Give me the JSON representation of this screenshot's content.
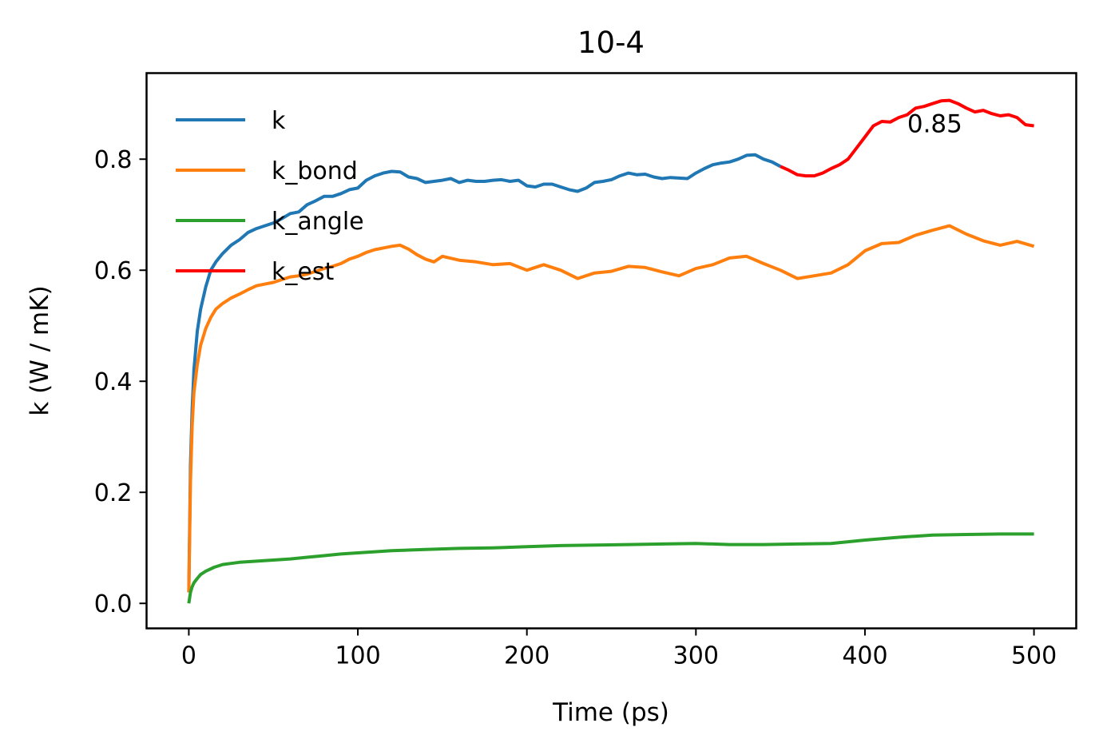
{
  "chart_data": {
    "type": "line",
    "title": "10-4",
    "xlabel": "Time (ps)",
    "ylabel": "k (W / mK)",
    "xlim": [
      -25,
      525
    ],
    "ylim": [
      -0.045,
      0.955
    ],
    "xticks": [
      0,
      100,
      200,
      300,
      400,
      500
    ],
    "xtick_labels": [
      "0",
      "100",
      "200",
      "300",
      "400",
      "500"
    ],
    "yticks": [
      0.0,
      0.2,
      0.4,
      0.6,
      0.8
    ],
    "ytick_labels": [
      "0.0",
      "0.2",
      "0.4",
      "0.6",
      "0.8"
    ],
    "grid": false,
    "legend_position": "upper-left",
    "annotation": {
      "text": "0.85",
      "x": 425,
      "y": 0.86
    },
    "series": [
      {
        "name": "k",
        "color": "#1f77b4",
        "x": [
          0,
          1,
          2,
          3,
          5,
          7,
          10,
          13,
          16,
          20,
          25,
          30,
          35,
          40,
          45,
          50,
          55,
          60,
          65,
          70,
          75,
          80,
          85,
          90,
          95,
          100,
          105,
          110,
          115,
          120,
          125,
          130,
          135,
          140,
          145,
          150,
          155,
          160,
          165,
          170,
          175,
          180,
          185,
          190,
          195,
          200,
          205,
          210,
          215,
          220,
          225,
          230,
          235,
          240,
          245,
          250,
          255,
          260,
          265,
          270,
          275,
          280,
          285,
          290,
          295,
          300,
          305,
          310,
          315,
          320,
          325,
          330,
          335,
          340,
          345,
          350
        ],
        "values": [
          0.02,
          0.25,
          0.35,
          0.42,
          0.49,
          0.53,
          0.57,
          0.6,
          0.615,
          0.63,
          0.645,
          0.655,
          0.668,
          0.675,
          0.68,
          0.685,
          0.693,
          0.702,
          0.705,
          0.718,
          0.725,
          0.733,
          0.733,
          0.738,
          0.745,
          0.748,
          0.762,
          0.77,
          0.775,
          0.778,
          0.777,
          0.768,
          0.765,
          0.758,
          0.76,
          0.762,
          0.765,
          0.758,
          0.762,
          0.76,
          0.76,
          0.762,
          0.763,
          0.76,
          0.762,
          0.752,
          0.75,
          0.755,
          0.755,
          0.75,
          0.745,
          0.742,
          0.748,
          0.758,
          0.76,
          0.763,
          0.77,
          0.775,
          0.772,
          0.773,
          0.768,
          0.765,
          0.767,
          0.766,
          0.765,
          0.775,
          0.783,
          0.79,
          0.793,
          0.795,
          0.8,
          0.807,
          0.808,
          0.8,
          0.795,
          0.787
        ]
      },
      {
        "name": "k_bond",
        "color": "#ff7f0e",
        "x": [
          0,
          1,
          2,
          3,
          5,
          7,
          10,
          13,
          16,
          20,
          25,
          30,
          35,
          40,
          45,
          50,
          55,
          60,
          65,
          70,
          75,
          80,
          85,
          90,
          95,
          100,
          105,
          110,
          115,
          120,
          125,
          130,
          135,
          140,
          145,
          150,
          160,
          170,
          180,
          190,
          200,
          210,
          220,
          230,
          240,
          250,
          260,
          270,
          280,
          290,
          300,
          310,
          320,
          330,
          340,
          350,
          360,
          370,
          380,
          390,
          400,
          410,
          420,
          430,
          440,
          450,
          460,
          470,
          480,
          490,
          500
        ],
        "values": [
          0.02,
          0.22,
          0.32,
          0.38,
          0.43,
          0.465,
          0.495,
          0.515,
          0.53,
          0.54,
          0.55,
          0.557,
          0.565,
          0.572,
          0.575,
          0.578,
          0.583,
          0.588,
          0.59,
          0.593,
          0.598,
          0.603,
          0.607,
          0.612,
          0.62,
          0.625,
          0.632,
          0.637,
          0.64,
          0.643,
          0.645,
          0.638,
          0.628,
          0.62,
          0.615,
          0.625,
          0.618,
          0.615,
          0.61,
          0.612,
          0.6,
          0.61,
          0.6,
          0.585,
          0.595,
          0.598,
          0.607,
          0.605,
          0.597,
          0.59,
          0.603,
          0.61,
          0.622,
          0.625,
          0.612,
          0.6,
          0.585,
          0.59,
          0.595,
          0.61,
          0.635,
          0.648,
          0.65,
          0.663,
          0.672,
          0.68,
          0.665,
          0.653,
          0.645,
          0.652,
          0.643
        ]
      },
      {
        "name": "k_angle",
        "color": "#2ca02c",
        "x": [
          0,
          1,
          2,
          3,
          5,
          7,
          10,
          15,
          20,
          25,
          30,
          40,
          50,
          60,
          70,
          80,
          90,
          100,
          110,
          120,
          140,
          160,
          180,
          200,
          220,
          240,
          260,
          280,
          300,
          320,
          340,
          360,
          380,
          400,
          420,
          440,
          460,
          480,
          500
        ],
        "values": [
          0.0,
          0.02,
          0.03,
          0.037,
          0.045,
          0.052,
          0.058,
          0.065,
          0.07,
          0.072,
          0.074,
          0.076,
          0.078,
          0.08,
          0.083,
          0.086,
          0.089,
          0.091,
          0.093,
          0.095,
          0.097,
          0.099,
          0.1,
          0.102,
          0.104,
          0.105,
          0.106,
          0.107,
          0.108,
          0.106,
          0.106,
          0.107,
          0.108,
          0.114,
          0.119,
          0.123,
          0.124,
          0.125,
          0.125
        ]
      },
      {
        "name": "k_est",
        "color": "#ff0000",
        "x": [
          350,
          355,
          360,
          365,
          370,
          375,
          380,
          385,
          390,
          395,
          400,
          405,
          410,
          415,
          420,
          425,
          430,
          435,
          440,
          445,
          450,
          455,
          460,
          465,
          470,
          475,
          480,
          485,
          490,
          495,
          500
        ],
        "values": [
          0.787,
          0.78,
          0.772,
          0.77,
          0.77,
          0.775,
          0.783,
          0.79,
          0.8,
          0.82,
          0.84,
          0.86,
          0.868,
          0.867,
          0.875,
          0.88,
          0.892,
          0.895,
          0.9,
          0.905,
          0.906,
          0.9,
          0.892,
          0.885,
          0.888,
          0.882,
          0.878,
          0.88,
          0.875,
          0.862,
          0.86
        ]
      }
    ]
  }
}
